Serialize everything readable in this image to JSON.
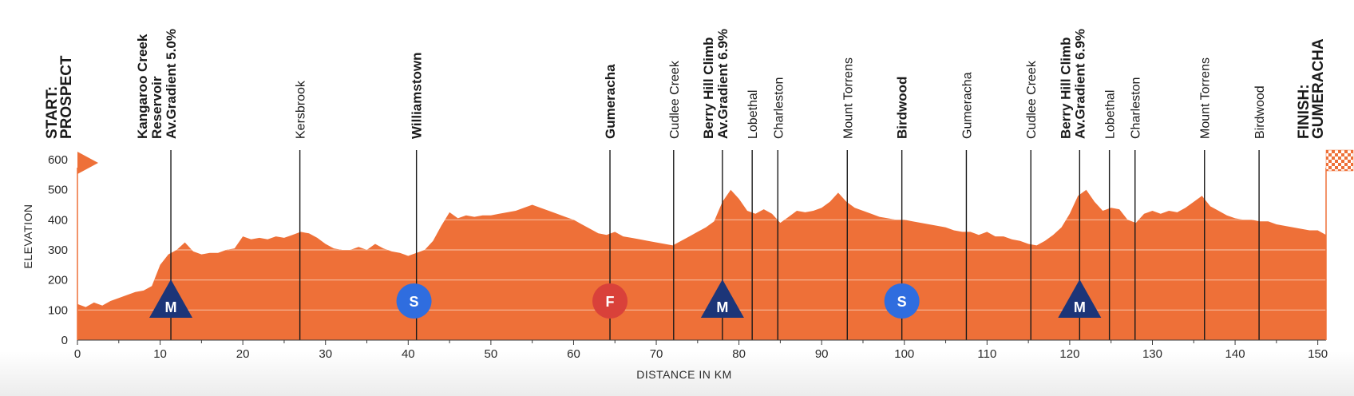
{
  "colors": {
    "profile": "#EE7038",
    "grid": "#F6B898",
    "waypoint_line": "#1a1a1a",
    "mountain": "#1C3578",
    "sprint": "#2F6DDF",
    "feed": "#D9413A",
    "finish_check": "#EE7038"
  },
  "chart_data": {
    "type": "area",
    "xlabel": "DISTANCE IN KM",
    "ylabel": "ELEVATION",
    "xlim": [
      0,
      151
    ],
    "ylim": [
      0,
      600
    ],
    "x_ticks": [
      0,
      10,
      20,
      30,
      40,
      50,
      60,
      70,
      80,
      90,
      100,
      110,
      120,
      130,
      140,
      150
    ],
    "y_ticks": [
      0,
      100,
      200,
      300,
      400,
      500,
      600
    ],
    "grid": "horizontal",
    "profile": [
      [
        0,
        120
      ],
      [
        1,
        110
      ],
      [
        2,
        125
      ],
      [
        3,
        115
      ],
      [
        4,
        130
      ],
      [
        5,
        140
      ],
      [
        6,
        150
      ],
      [
        7,
        160
      ],
      [
        8,
        165
      ],
      [
        9,
        180
      ],
      [
        10,
        250
      ],
      [
        11,
        285
      ],
      [
        12,
        300
      ],
      [
        13,
        325
      ],
      [
        14,
        295
      ],
      [
        15,
        285
      ],
      [
        16,
        290
      ],
      [
        17,
        290
      ],
      [
        18,
        300
      ],
      [
        19,
        305
      ],
      [
        20,
        345
      ],
      [
        21,
        335
      ],
      [
        22,
        340
      ],
      [
        23,
        335
      ],
      [
        24,
        345
      ],
      [
        25,
        340
      ],
      [
        26,
        350
      ],
      [
        27,
        360
      ],
      [
        28,
        355
      ],
      [
        29,
        340
      ],
      [
        30,
        320
      ],
      [
        31,
        305
      ],
      [
        32,
        300
      ],
      [
        33,
        300
      ],
      [
        34,
        310
      ],
      [
        35,
        300
      ],
      [
        36,
        320
      ],
      [
        37,
        305
      ],
      [
        38,
        295
      ],
      [
        39,
        290
      ],
      [
        40,
        280
      ],
      [
        41,
        290
      ],
      [
        42,
        300
      ],
      [
        43,
        330
      ],
      [
        44,
        380
      ],
      [
        45,
        425
      ],
      [
        46,
        405
      ],
      [
        47,
        415
      ],
      [
        48,
        410
      ],
      [
        49,
        415
      ],
      [
        50,
        415
      ],
      [
        51,
        420
      ],
      [
        52,
        425
      ],
      [
        53,
        430
      ],
      [
        54,
        440
      ],
      [
        55,
        450
      ],
      [
        56,
        440
      ],
      [
        57,
        430
      ],
      [
        58,
        420
      ],
      [
        59,
        410
      ],
      [
        60,
        400
      ],
      [
        61,
        385
      ],
      [
        62,
        370
      ],
      [
        63,
        355
      ],
      [
        64,
        350
      ],
      [
        65,
        360
      ],
      [
        66,
        345
      ],
      [
        67,
        340
      ],
      [
        68,
        335
      ],
      [
        69,
        330
      ],
      [
        70,
        325
      ],
      [
        71,
        320
      ],
      [
        72,
        315
      ],
      [
        73,
        330
      ],
      [
        74,
        345
      ],
      [
        75,
        360
      ],
      [
        76,
        375
      ],
      [
        77,
        395
      ],
      [
        78,
        460
      ],
      [
        79,
        500
      ],
      [
        80,
        470
      ],
      [
        81,
        430
      ],
      [
        82,
        420
      ],
      [
        83,
        435
      ],
      [
        84,
        420
      ],
      [
        85,
        390
      ],
      [
        86,
        410
      ],
      [
        87,
        430
      ],
      [
        88,
        425
      ],
      [
        89,
        430
      ],
      [
        90,
        440
      ],
      [
        91,
        460
      ],
      [
        92,
        490
      ],
      [
        93,
        460
      ],
      [
        94,
        440
      ],
      [
        95,
        430
      ],
      [
        96,
        420
      ],
      [
        97,
        410
      ],
      [
        98,
        405
      ],
      [
        99,
        400
      ],
      [
        100,
        400
      ],
      [
        101,
        395
      ],
      [
        102,
        390
      ],
      [
        103,
        385
      ],
      [
        104,
        380
      ],
      [
        105,
        375
      ],
      [
        106,
        365
      ],
      [
        107,
        360
      ],
      [
        108,
        360
      ],
      [
        109,
        350
      ],
      [
        110,
        360
      ],
      [
        111,
        345
      ],
      [
        112,
        345
      ],
      [
        113,
        335
      ],
      [
        114,
        330
      ],
      [
        115,
        320
      ],
      [
        116,
        315
      ],
      [
        117,
        330
      ],
      [
        118,
        350
      ],
      [
        119,
        375
      ],
      [
        120,
        420
      ],
      [
        121,
        480
      ],
      [
        122,
        500
      ],
      [
        123,
        460
      ],
      [
        124,
        430
      ],
      [
        125,
        440
      ],
      [
        126,
        435
      ],
      [
        127,
        400
      ],
      [
        128,
        390
      ],
      [
        129,
        420
      ],
      [
        130,
        430
      ],
      [
        131,
        420
      ],
      [
        132,
        430
      ],
      [
        133,
        425
      ],
      [
        134,
        440
      ],
      [
        135,
        460
      ],
      [
        136,
        480
      ],
      [
        137,
        445
      ],
      [
        138,
        430
      ],
      [
        139,
        415
      ],
      [
        140,
        405
      ],
      [
        141,
        400
      ],
      [
        142,
        400
      ],
      [
        143,
        395
      ],
      [
        144,
        395
      ],
      [
        145,
        385
      ],
      [
        146,
        380
      ],
      [
        147,
        375
      ],
      [
        148,
        370
      ],
      [
        149,
        365
      ],
      [
        150,
        365
      ],
      [
        151,
        350
      ]
    ],
    "waypoints": [
      {
        "km": 0,
        "lines": [
          "START:",
          "PROSPECT"
        ],
        "style": "endpoint",
        "line": false
      },
      {
        "km": 11.3,
        "lines": [
          "Kangaroo Creek",
          "Reservoir",
          "Av.Gradient 5.0%"
        ],
        "style": "bold",
        "line": true,
        "marker": "M"
      },
      {
        "km": 26.9,
        "lines": [
          "Kersbrook"
        ],
        "style": "normal",
        "line": true
      },
      {
        "km": 41,
        "lines": [
          "Williamstown"
        ],
        "style": "bold",
        "line": true,
        "marker": "S",
        "marker_km": 40.7
      },
      {
        "km": 64.4,
        "lines": [
          "Gumeracha"
        ],
        "style": "bold",
        "line": true,
        "marker": "F"
      },
      {
        "km": 72.1,
        "lines": [
          "Cudlee Creek"
        ],
        "style": "normal",
        "line": true
      },
      {
        "km": 78,
        "lines": [
          "Berry Hill Climb",
          "Av.Gradient 6.9%"
        ],
        "style": "bold",
        "line": true,
        "marker": "M"
      },
      {
        "km": 81.6,
        "lines": [
          "Lobethal"
        ],
        "style": "normal",
        "line": true
      },
      {
        "km": 84.7,
        "lines": [
          "Charleston"
        ],
        "style": "normal",
        "line": true
      },
      {
        "km": 93.1,
        "lines": [
          "Mount Torrens"
        ],
        "style": "normal",
        "line": true
      },
      {
        "km": 99.7,
        "lines": [
          "Birdwood"
        ],
        "style": "bold",
        "line": true,
        "marker": "S"
      },
      {
        "km": 107.5,
        "lines": [
          "Gumeracha"
        ],
        "style": "normal",
        "line": true
      },
      {
        "km": 115.3,
        "lines": [
          "Cudlee Creek"
        ],
        "style": "normal",
        "line": true
      },
      {
        "km": 121.2,
        "lines": [
          "Berry Hill Climb",
          "Av.Gradient 6.9%"
        ],
        "style": "bold",
        "line": true,
        "marker": "M"
      },
      {
        "km": 124.8,
        "lines": [
          "Lobethal"
        ],
        "style": "normal",
        "line": true
      },
      {
        "km": 127.9,
        "lines": [
          "Charleston"
        ],
        "style": "normal",
        "line": true
      },
      {
        "km": 136.3,
        "lines": [
          "Mount Torrens"
        ],
        "style": "normal",
        "line": true
      },
      {
        "km": 142.9,
        "lines": [
          "Birdwood"
        ],
        "style": "normal",
        "line": true
      },
      {
        "km": 151,
        "lines": [
          "FINISH:",
          "GUMERACHA"
        ],
        "style": "endpoint",
        "line": false
      }
    ]
  }
}
